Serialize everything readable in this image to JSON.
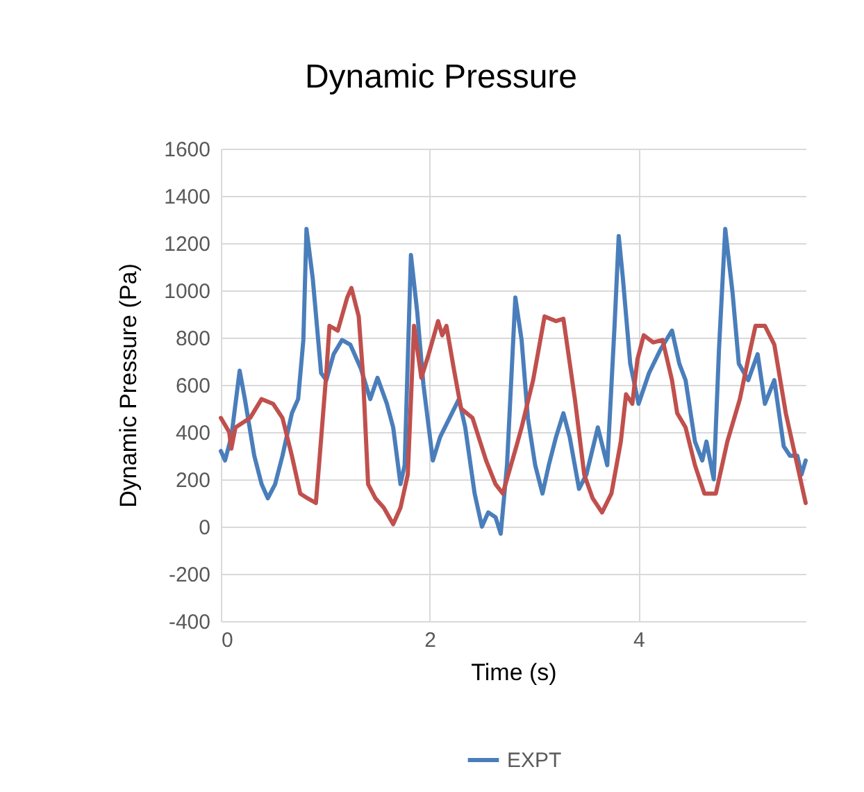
{
  "chart_data": {
    "type": "line",
    "title": "Dynamic Pressure",
    "xlabel": "Time (s)",
    "ylabel": "Dynamic Pressure (Pa)",
    "xlim": [
      0,
      5.6
    ],
    "xticks": [
      0,
      2,
      4
    ],
    "ylim": [
      -400,
      1600
    ],
    "yticks": [
      -400,
      -200,
      0,
      200,
      400,
      600,
      800,
      1000,
      1200,
      1400,
      1600
    ],
    "grid": true,
    "legend": "bottom",
    "line_style": "solid",
    "marker": "none",
    "series": [
      {
        "name": "EXPT",
        "color": "#4a7ebb",
        "x": [
          0,
          0.04,
          0.1,
          0.18,
          0.23,
          0.32,
          0.39,
          0.45,
          0.52,
          0.59,
          0.68,
          0.74,
          0.79,
          0.82,
          0.88,
          0.96,
          1.01,
          1.08,
          1.16,
          1.24,
          1.34,
          1.43,
          1.5,
          1.59,
          1.65,
          1.72,
          1.76,
          1.82,
          1.88,
          1.94,
          2.03,
          2.1,
          2.19,
          2.28,
          2.34,
          2.43,
          2.5,
          2.56,
          2.63,
          2.68,
          2.74,
          2.82,
          2.88,
          2.94,
          3.01,
          3.08,
          3.14,
          3.21,
          3.28,
          3.34,
          3.43,
          3.5,
          3.61,
          3.7,
          3.77,
          3.81,
          3.85,
          3.92,
          4.0,
          4.1,
          4.21,
          4.32,
          4.39,
          4.45,
          4.54,
          4.61,
          4.65,
          4.72,
          4.77,
          4.83,
          4.9,
          4.96,
          5.05,
          5.14,
          5.21,
          5.3,
          5.39,
          5.45,
          5.52,
          5.56,
          5.6
        ],
        "values": [
          320,
          280,
          380,
          660,
          540,
          300,
          180,
          120,
          180,
          300,
          480,
          540,
          790,
          1260,
          1050,
          650,
          620,
          730,
          790,
          770,
          670,
          540,
          630,
          520,
          420,
          180,
          260,
          1150,
          910,
          600,
          280,
          380,
          460,
          540,
          420,
          140,
          0,
          60,
          40,
          -30,
          260,
          970,
          790,
          460,
          260,
          140,
          260,
          380,
          480,
          380,
          160,
          220,
          420,
          260,
          850,
          1230,
          1050,
          690,
          520,
          650,
          750,
          830,
          690,
          620,
          360,
          280,
          360,
          200,
          750,
          1260,
          990,
          690,
          620,
          730,
          520,
          620,
          340,
          300,
          300,
          220,
          280
        ]
      },
      {
        "color": "#c0504d",
        "x": [
          0,
          0.08,
          0.1,
          0.14,
          0.28,
          0.39,
          0.5,
          0.59,
          0.68,
          0.76,
          0.83,
          0.91,
          0.94,
          1.01,
          1.04,
          1.12,
          1.21,
          1.25,
          1.32,
          1.36,
          1.41,
          1.48,
          1.56,
          1.65,
          1.72,
          1.79,
          1.85,
          1.92,
          1.99,
          2.08,
          2.12,
          2.16,
          2.23,
          2.3,
          2.41,
          2.54,
          2.63,
          2.7,
          2.83,
          2.88,
          2.99,
          3.1,
          3.21,
          3.28,
          3.39,
          3.48,
          3.56,
          3.65,
          3.74,
          3.83,
          3.88,
          3.94,
          3.99,
          4.05,
          4.14,
          4.23,
          4.32,
          4.37,
          4.45,
          4.54,
          4.63,
          4.74,
          4.85,
          4.97,
          5.05,
          5.12,
          5.21,
          5.3,
          5.41,
          5.52,
          5.6
        ],
        "values": [
          460,
          400,
          330,
          420,
          460,
          540,
          520,
          460,
          300,
          140,
          120,
          100,
          260,
          650,
          850,
          830,
          970,
          1010,
          890,
          650,
          180,
          120,
          80,
          10,
          80,
          220,
          850,
          630,
          730,
          870,
          810,
          850,
          670,
          500,
          460,
          280,
          180,
          140,
          340,
          420,
          620,
          890,
          870,
          880,
          540,
          220,
          120,
          60,
          140,
          360,
          560,
          520,
          710,
          810,
          780,
          790,
          620,
          480,
          420,
          260,
          140,
          140,
          360,
          540,
          710,
          850,
          850,
          770,
          480,
          260,
          100
        ]
      }
    ]
  }
}
